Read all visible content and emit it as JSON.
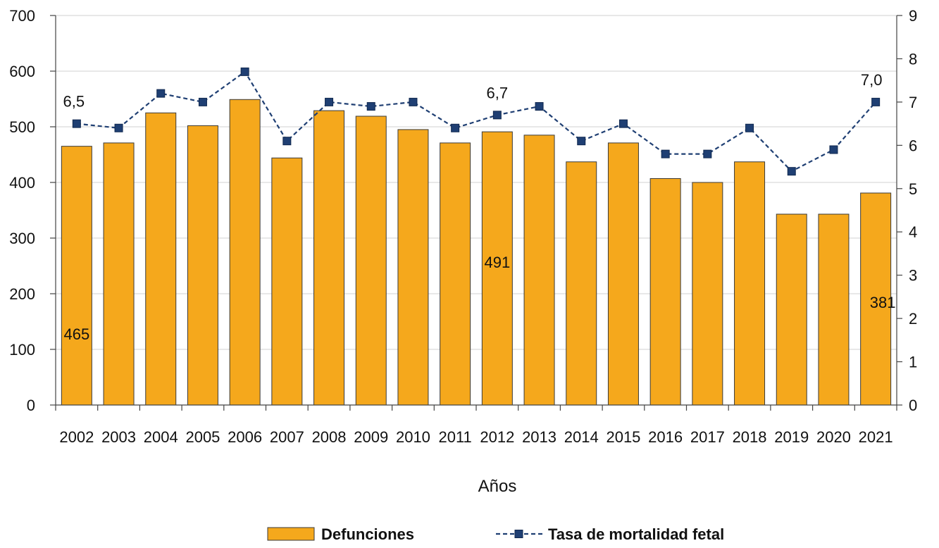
{
  "chart_data": {
    "type": "bar",
    "categories": [
      "2002",
      "2003",
      "2004",
      "2005",
      "2006",
      "2007",
      "2008",
      "2009",
      "2010",
      "2011",
      "2012",
      "2013",
      "2014",
      "2015",
      "2016",
      "2017",
      "2018",
      "2019",
      "2020",
      "2021"
    ],
    "series": [
      {
        "name": "Defunciones",
        "type": "bar",
        "axis": "left",
        "color": "#F5A81C",
        "values": [
          465,
          471,
          525,
          502,
          549,
          444,
          529,
          519,
          495,
          471,
          491,
          485,
          437,
          471,
          407,
          400,
          437,
          343,
          343,
          381
        ]
      },
      {
        "name": "Tasa de mortalidad fetal",
        "type": "line",
        "axis": "right",
        "color": "#1F3F73",
        "line_style": "dashed",
        "marker": "square",
        "values": [
          6.5,
          6.4,
          7.2,
          7.0,
          7.7,
          6.1,
          7.0,
          6.9,
          7.0,
          6.4,
          6.7,
          6.9,
          6.1,
          6.5,
          5.8,
          5.8,
          6.4,
          5.4,
          5.9,
          7.0
        ]
      }
    ],
    "data_labels": [
      {
        "series": 0,
        "index": 0,
        "text": "465"
      },
      {
        "series": 0,
        "index": 10,
        "text": "491"
      },
      {
        "series": 0,
        "index": 19,
        "text": "381"
      },
      {
        "series": 1,
        "index": 0,
        "text": "6,5"
      },
      {
        "series": 1,
        "index": 10,
        "text": "6,7"
      },
      {
        "series": 1,
        "index": 19,
        "text": "7,0"
      }
    ],
    "xlabel": "Años",
    "ylim_left": [
      0,
      700
    ],
    "yticks_left": [
      "0",
      "100",
      "200",
      "300",
      "400",
      "500",
      "600",
      "700"
    ],
    "ylim_right": [
      0,
      9
    ],
    "yticks_right": [
      "0",
      "1",
      "2",
      "3",
      "4",
      "5",
      "6",
      "7",
      "8",
      "9"
    ],
    "grid": true,
    "legend_position": "bottom"
  }
}
